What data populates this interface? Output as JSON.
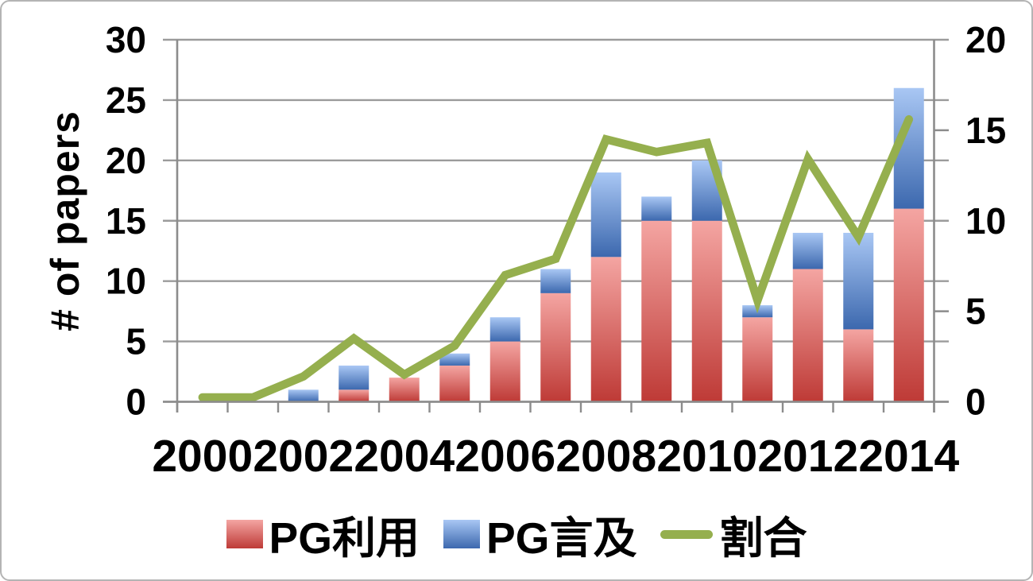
{
  "frame": {
    "border_color": "#b4b4b4",
    "background": "#ffffff"
  },
  "chart_data": {
    "type": "combo: stacked-bar + line (dual axis)",
    "title": "",
    "categories": [
      "2000",
      "2001",
      "2002",
      "2003",
      "2004",
      "2005",
      "2006",
      "2007",
      "2008",
      "2009",
      "2010",
      "2011",
      "2012",
      "2013",
      "2014"
    ],
    "x_tick_labels": [
      "2000",
      "2002",
      "2004",
      "2006",
      "2008",
      "2010",
      "2012",
      "2014"
    ],
    "left_axis": {
      "title": "# of papers",
      "min": 0,
      "max": 30,
      "step": 5,
      "tick_labels": [
        "30",
        "25",
        "20",
        "15",
        "10",
        "5",
        "0"
      ]
    },
    "right_axis": {
      "min": 0,
      "max": 20,
      "step": 5,
      "tick_labels": [
        "20",
        "15",
        "10",
        "5",
        "0"
      ]
    },
    "grid": {
      "horizontal": true,
      "color": "#9b9b9b",
      "axis_color": "#8c8c8c"
    },
    "series": [
      {
        "name": "PG利用",
        "type": "bar",
        "stack": "papers",
        "axis": "left",
        "color": "#C0504D",
        "gradient_top": "#F4A5A2",
        "gradient_bottom": "#BE3A36",
        "values": [
          0,
          0,
          0,
          1,
          2,
          3,
          5,
          9,
          12,
          15,
          15,
          7,
          11,
          6,
          16
        ]
      },
      {
        "name": "PG言及",
        "type": "bar",
        "stack": "papers",
        "axis": "left",
        "color": "#4F81BD",
        "gradient_top": "#A9C7F4",
        "gradient_bottom": "#3C68AE",
        "values": [
          0,
          0,
          1,
          2,
          0,
          1,
          2,
          2,
          7,
          2,
          5,
          1,
          3,
          8,
          10
        ]
      },
      {
        "name": "割合",
        "type": "line",
        "axis": "right",
        "color": "#95AF4E",
        "line_width": 10.5,
        "values": [
          0,
          0,
          1.4,
          3.5,
          1.5,
          3.1,
          7.0,
          7.9,
          14.5,
          13.8,
          14.3,
          5.6,
          13.4,
          9.1,
          15.6
        ]
      }
    ],
    "legend": {
      "position": "bottom",
      "items": [
        "PG利用",
        "PG言及",
        "割合"
      ]
    }
  }
}
